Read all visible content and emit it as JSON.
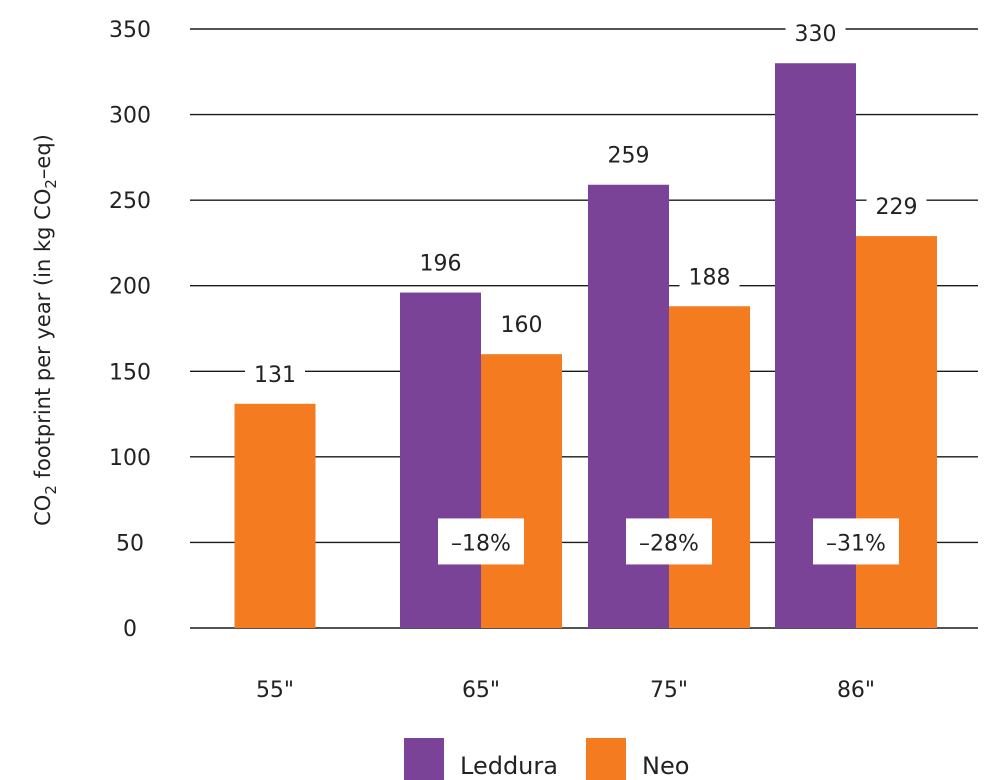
{
  "chart_data": {
    "type": "bar",
    "categories": [
      "55\"",
      "65\"",
      "75\"",
      "86\""
    ],
    "series": [
      {
        "name": "Leddura",
        "color": "#7b4397",
        "values": [
          null,
          196,
          259,
          330
        ]
      },
      {
        "name": "Neo",
        "color": "#f47b20",
        "values": [
          131,
          160,
          188,
          229
        ]
      }
    ],
    "ylabel": {
      "part1": "CO",
      "sub1": "2",
      "part2": " footprint per year (in kg CO",
      "sub2": "2",
      "part3": "–eq)"
    },
    "ylim": [
      0,
      350
    ],
    "yticks": [
      0,
      50,
      100,
      150,
      200,
      250,
      300,
      350
    ],
    "grid": true,
    "legend_position": "bottom",
    "annotations": [
      "",
      "–18%",
      "–28%",
      "–31%"
    ]
  }
}
